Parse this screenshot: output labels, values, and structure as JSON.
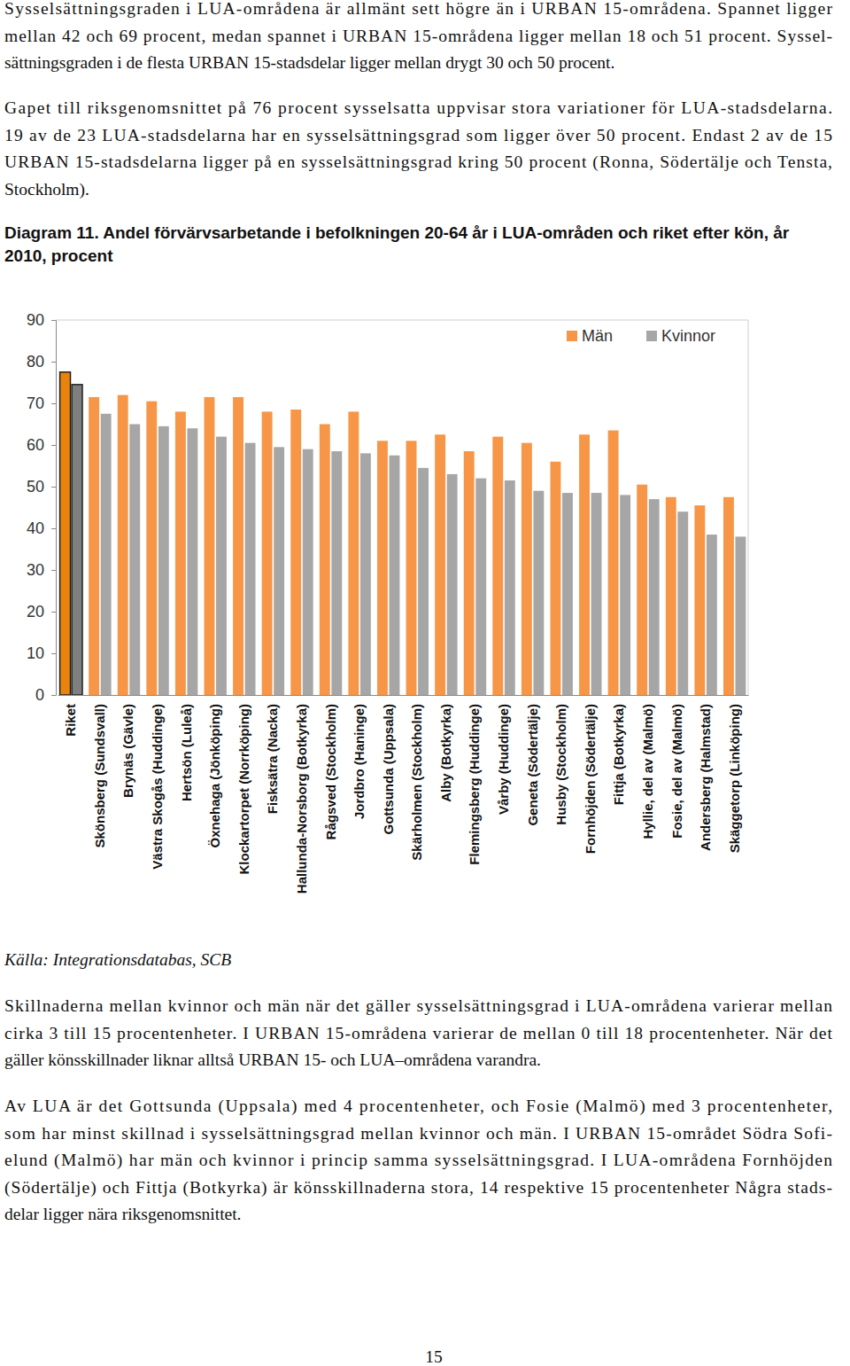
{
  "document": {
    "paragraphs_top": [
      [
        "Sysselsättningsgraden i LUA-områdena är allmänt sett högre än i URBAN 15-områdena. Spannet ligger",
        "mellan 42 och 69 procent, medan spannet i URBAN 15-områdena ligger mellan 18 och 51 procent. Syssel-",
        "sättningsgraden i de flesta URBAN 15-stadsdelar ligger mellan drygt 30 och 50 procent."
      ],
      [
        "Gapet till riksgenomsnittet på 76 procent sysselsatta uppvisar stora variationer för LUA-stadsdelarna.",
        "19 av de 23 LUA-stadsdelarna har en sysselsättningsgrad som ligger över 50 procent. Endast 2 av de 15",
        "URBAN 15-stadsdelarna ligger på en sysselsättningsgrad kring 50 procent (Ronna, Södertälje och Tensta,",
        "Stockholm)."
      ]
    ],
    "source": "Källa: Integrationsdatabas, SCB",
    "paragraphs_bottom": [
      [
        "Skillnaderna mellan kvinnor och män när det gäller sysselsättningsgrad i LUA-områdena varierar mellan",
        "cirka 3 till 15 procentenheter. I URBAN 15-områdena varierar de mellan 0 till 18 procentenheter. När det",
        "gäller könsskillnader liknar alltså URBAN 15- och LUA–områdena varandra."
      ],
      [
        "Av LUA är det Gottsunda (Uppsala) med 4 procentenheter, och Fosie (Malmö) med 3 procentenheter,",
        "som har minst skillnad i sysselsättningsgrad mellan kvinnor och män. I URBAN 15-området Södra Sofi-",
        "elund (Malmö) har män och kvinnor i princip samma sysselsättningsgrad. I LUA-områdena Fornhöjden",
        "(Södertälje) och Fittja (Botkyrka) är könsskillnaderna stora, 14 respektive 15 procentenheter Några stads-",
        "delar ligger nära riksgenomsnittet."
      ]
    ],
    "page_number": 15
  },
  "chart_data": {
    "type": "bar",
    "title": "Diagram 11. Andel förvärvsarbetande i befolkningen 20-64 år i LUA-områden och riket efter kön, år 2010, procent",
    "categories": [
      "Riket",
      "Skönsberg (Sundsvall)",
      "Brynäs (Gävle)",
      "Västra Skogås (Huddinge)",
      "Hertsön (Luleå)",
      "Öxnehaga (Jönköping)",
      "Klockartorpet (Norrköping)",
      "Fisksätra (Nacka)",
      "Hallunda-Norsborg (Botkyrka)",
      "Rågsved (Stockholm)",
      "Jordbro (Haninge)",
      "Gottsunda (Uppsala)",
      "Skärholmen (Stockholm)",
      "Alby (Botkyrka)",
      "Flemingsberg (Huddinge)",
      "Vårby (Huddinge)",
      "Geneta (Södertälje)",
      "Husby (Stockholm)",
      "Fornhöjden (Södertälje)",
      "Fittja (Botkyrka)",
      "Hyllie, del av (Malmö)",
      "Fosie, del av (Malmö)",
      "Andersberg (Halmstad)",
      "Skäggetorp (Linköping)"
    ],
    "series": [
      {
        "name": "Män",
        "color": "#f79646",
        "colors": [
          "#e8830e",
          "#f79646",
          "#f79646",
          "#f79646",
          "#f79646",
          "#f79646",
          "#f79646",
          "#f79646",
          "#f79646",
          "#f79646",
          "#f79646",
          "#f79646",
          "#f79646",
          "#f79646",
          "#f79646",
          "#f79646",
          "#f79646",
          "#f79646",
          "#f79646",
          "#f79646",
          "#f79646",
          "#f79646",
          "#f79646",
          "#f79646"
        ],
        "values": [
          77.5,
          71.5,
          72,
          70.5,
          68,
          71.5,
          71.5,
          68,
          68.5,
          65,
          68,
          61,
          61,
          62.5,
          58.5,
          62,
          60.5,
          56,
          62.5,
          63.5,
          50.5,
          47.5,
          45.5,
          47.5
        ]
      },
      {
        "name": "Kvinnor",
        "color": "#a6a6a6",
        "colors": [
          "#7f7f7f",
          "#a6a6a6",
          "#a6a6a6",
          "#a6a6a6",
          "#a6a6a6",
          "#a6a6a6",
          "#a6a6a6",
          "#a6a6a6",
          "#a6a6a6",
          "#a6a6a6",
          "#a6a6a6",
          "#a6a6a6",
          "#a6a6a6",
          "#a6a6a6",
          "#a6a6a6",
          "#a6a6a6",
          "#a6a6a6",
          "#a6a6a6",
          "#a6a6a6",
          "#a6a6a6",
          "#a6a6a6",
          "#a6a6a6",
          "#a6a6a6",
          "#a6a6a6"
        ],
        "values": [
          74.5,
          67.5,
          65,
          64.5,
          64,
          62,
          60.5,
          59.5,
          59,
          58.5,
          58,
          57.5,
          54.5,
          53,
          52,
          51.5,
          49,
          48.5,
          48.5,
          48,
          47,
          44,
          38.5,
          38
        ]
      }
    ],
    "ylim": [
      0,
      90
    ],
    "yticks": [
      0,
      10,
      20,
      30,
      40,
      50,
      60,
      70,
      80,
      90
    ],
    "grid": false,
    "legend": "top-right"
  }
}
